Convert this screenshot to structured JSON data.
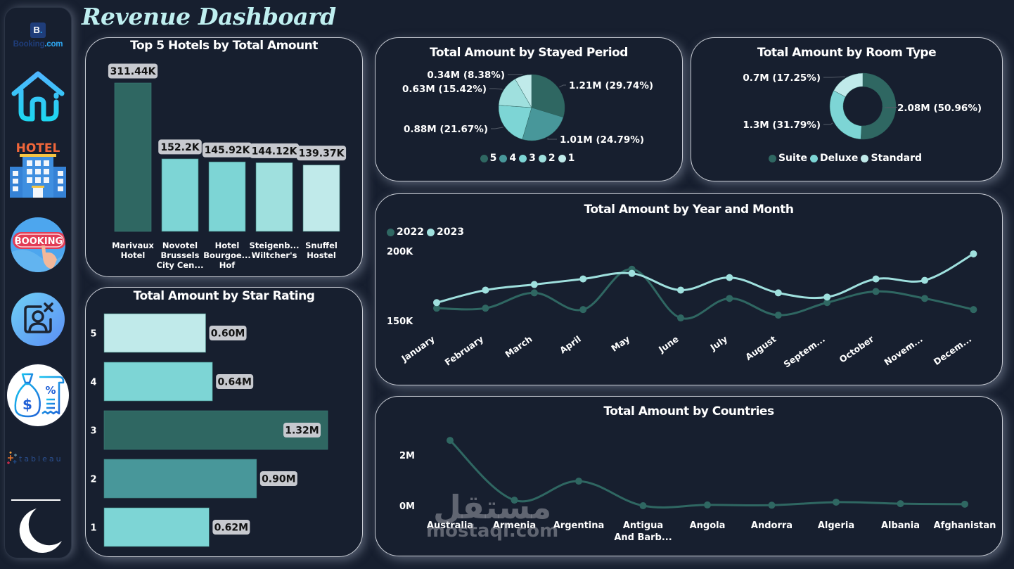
{
  "page": {
    "title": "Revenue Dashboard"
  },
  "sidebar": {
    "brand": {
      "logo_letter": "B",
      "logo_dot": ".",
      "name_part1": "Booking",
      "name_part2": ".com"
    },
    "items": [
      {
        "name": "home",
        "icon": "home-icon"
      },
      {
        "name": "hotel",
        "icon": "hotel-icon",
        "label": "HOTEL"
      },
      {
        "name": "booking",
        "icon": "booking-icon",
        "label": "BOOKING"
      },
      {
        "name": "cancel-contact",
        "icon": "user-remove-icon"
      },
      {
        "name": "finance",
        "icon": "money-bag-receipt-icon",
        "symbol": "$",
        "percent": "%"
      },
      {
        "name": "tableau",
        "icon": "tableau-logo",
        "label": "tableau"
      },
      {
        "name": "theme",
        "icon": "moon-icon"
      }
    ]
  },
  "colors": {
    "dark_teal": "#2f6762",
    "mid_teal": "#48979a",
    "teal": "#7dd5d5",
    "light_teal": "#9fe0de",
    "pale_teal": "#c0eaea",
    "title_color": "#bfeff0",
    "background": "#171f2f"
  },
  "charts": [
    {
      "id": "top-hotels",
      "title": "Top 5 Hotels by Total Amount",
      "type": "bar",
      "categories": [
        [
          "Marivaux",
          "Hotel"
        ],
        [
          "Novotel",
          "Brussels",
          "City Cen..."
        ],
        [
          "Hotel",
          "Bourgoe...",
          "Hof"
        ],
        [
          "Steigenb...",
          "Wiltcher's"
        ],
        [
          "Snuffel",
          "Hostel"
        ]
      ],
      "values": [
        311.44,
        152.2,
        145.92,
        144.12,
        139.37
      ],
      "labels": [
        "311.44K",
        "152.2K",
        "145.92K",
        "144.12K",
        "139.37K"
      ],
      "colors": [
        "#2f6762",
        "#7dd5d5",
        "#7dd5d5",
        "#9fe0de",
        "#c0eaea"
      ],
      "unit": "K"
    },
    {
      "id": "star-rating",
      "title": "Total Amount by Star Rating",
      "type": "bar",
      "orientation": "horizontal",
      "categories": [
        "5",
        "4",
        "3",
        "2",
        "1"
      ],
      "values": [
        0.6,
        0.64,
        1.32,
        0.9,
        0.62
      ],
      "labels": [
        "0.60M",
        "0.64M",
        "1.32M",
        "0.90M",
        "0.62M"
      ],
      "colors": [
        "#c0eaea",
        "#7dd5d5",
        "#2f6762",
        "#48979a",
        "#7dd5d5"
      ],
      "unit": "M"
    },
    {
      "id": "stayed-period",
      "title": "Total Amount by Stayed Period",
      "type": "pie",
      "categories": [
        "5",
        "4",
        "3",
        "2",
        "1"
      ],
      "values": [
        1.21,
        1.01,
        0.88,
        0.63,
        0.34
      ],
      "percents": [
        29.74,
        24.79,
        21.67,
        15.42,
        8.38
      ],
      "labels": [
        "1.21M (29.74%)",
        "1.01M (24.79%)",
        "0.88M (21.67%)",
        "0.63M (15.42%)",
        "0.34M (8.38%)"
      ],
      "colors": [
        "#2f6762",
        "#48979a",
        "#7dd5d5",
        "#9fe0de",
        "#c0eaea"
      ],
      "legend": [
        "5",
        "4",
        "3",
        "2",
        "1"
      ]
    },
    {
      "id": "room-type",
      "title": "Total Amount by Room Type",
      "type": "pie",
      "variant": "donut",
      "categories": [
        "Suite",
        "Deluxe",
        "Standard"
      ],
      "values": [
        2.08,
        1.3,
        0.7
      ],
      "percents": [
        50.96,
        31.79,
        17.25
      ],
      "labels": [
        "2.08M (50.96%)",
        "1.3M (31.79%)",
        "0.7M (17.25%)"
      ],
      "colors": [
        "#2f6762",
        "#7dd5d5",
        "#c0eaea"
      ],
      "legend": [
        "Suite",
        "Deluxe",
        "Standard"
      ]
    },
    {
      "id": "year-month",
      "title": "Total Amount by Year and Month",
      "type": "line",
      "categories": [
        "January",
        "February",
        "March",
        "April",
        "May",
        "June",
        "July",
        "August",
        "Septem...",
        "October",
        "Novem...",
        "Decem..."
      ],
      "series": [
        {
          "name": "2022",
          "color": "#2f6762",
          "values": [
            159,
            159,
            170,
            158,
            187,
            152,
            166,
            154,
            163,
            171,
            166,
            158
          ]
        },
        {
          "name": "2023",
          "color": "#9fe0de",
          "values": [
            163,
            172,
            176,
            180,
            184,
            172,
            181,
            170,
            167,
            180,
            179,
            198
          ]
        }
      ],
      "yticks": [
        {
          "value": 200,
          "label": "200K"
        },
        {
          "value": 150,
          "label": "150K"
        }
      ],
      "ylim": [
        145,
        205
      ],
      "unit": "K",
      "legend": [
        "2022",
        "2023"
      ]
    },
    {
      "id": "countries",
      "title": "Total Amount by Countries",
      "type": "line",
      "categories": [
        [
          "Australia"
        ],
        [
          "Armenia"
        ],
        [
          "Argentina"
        ],
        [
          "Antigua",
          "And Barb..."
        ],
        [
          "Angola"
        ],
        [
          "Andorra"
        ],
        [
          "Algeria"
        ],
        [
          "Albania"
        ],
        [
          "Afghanistan"
        ]
      ],
      "series": [
        {
          "name": "Total Amount",
          "color": "#2f6762",
          "values": [
            2.58,
            0.22,
            0.97,
            0.0,
            0.03,
            0.02,
            0.14,
            0.08,
            0.06
          ]
        }
      ],
      "yticks": [
        {
          "value": 2,
          "label": "2M"
        },
        {
          "value": 0,
          "label": "0M"
        }
      ],
      "ylim": [
        0,
        2.8
      ],
      "unit": "M"
    }
  ],
  "watermark": {
    "arabic": "مستقل",
    "latin": "mostaql.com"
  }
}
